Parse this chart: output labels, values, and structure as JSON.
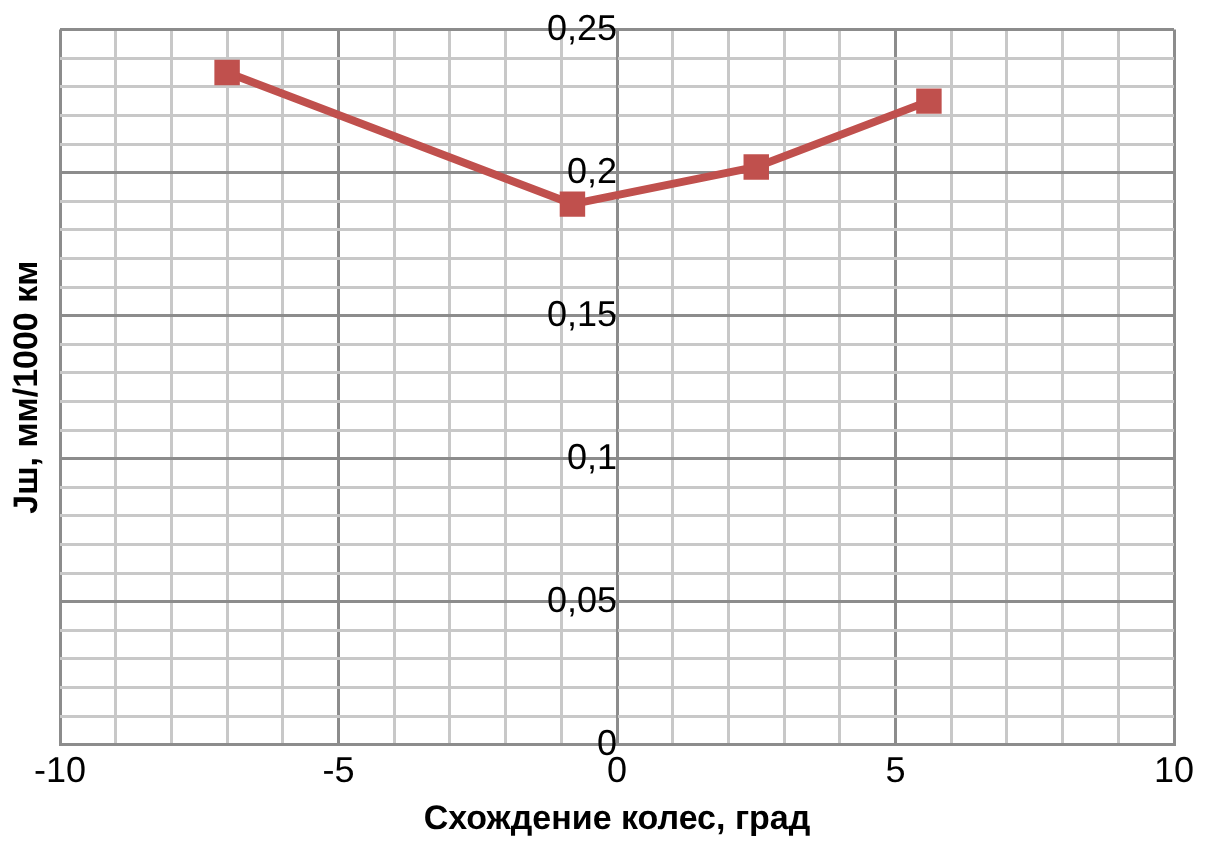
{
  "chart_data": {
    "type": "line",
    "xlabel": "Схождение колес, град",
    "ylabel": "Јш, мм/1000 км",
    "x": [
      -7,
      -0.8,
      2.5,
      5.6
    ],
    "series": [
      {
        "color": "#c0504d",
        "values": [
          0.235,
          0.189,
          0.202,
          0.225
        ]
      }
    ],
    "xlim": [
      -10,
      10
    ],
    "ylim": [
      0,
      0.25
    ],
    "xticks": [
      -10,
      {
        "value": -9,
        "label": null
      },
      {
        "value": -8,
        "label": null
      },
      {
        "value": -7,
        "label": null
      },
      {
        "value": -6,
        "label": null
      },
      -5,
      {
        "value": -4,
        "label": null
      },
      {
        "value": -3,
        "label": null
      },
      {
        "value": -2,
        "label": null
      },
      {
        "value": -1,
        "label": null
      },
      0,
      {
        "value": 1,
        "label": null
      },
      {
        "value": 2,
        "label": null
      },
      {
        "value": 3,
        "label": null
      },
      {
        "value": 4,
        "label": null
      },
      5,
      {
        "value": 6,
        "label": null
      },
      {
        "value": 7,
        "label": null
      },
      {
        "value": 8,
        "label": null
      },
      {
        "value": 9,
        "label": null
      },
      10
    ],
    "yticks": [
      {
        "value": 0,
        "label": "0"
      },
      {
        "value": 0.01,
        "label": null
      },
      {
        "value": 0.02,
        "label": null
      },
      {
        "value": 0.03,
        "label": null
      },
      {
        "value": 0.04,
        "label": null
      },
      {
        "value": 0.05,
        "label": "0,05"
      },
      {
        "value": 0.06,
        "label": null
      },
      {
        "value": 0.07,
        "label": null
      },
      {
        "value": 0.08,
        "label": null
      },
      {
        "value": 0.09,
        "label": null
      },
      {
        "value": 0.1,
        "label": "0,1"
      },
      {
        "value": 0.11,
        "label": null
      },
      {
        "value": 0.12,
        "label": null
      },
      {
        "value": 0.13,
        "label": null
      },
      {
        "value": 0.14,
        "label": null
      },
      {
        "value": 0.15,
        "label": "0,15"
      },
      {
        "value": 0.16,
        "label": null
      },
      {
        "value": 0.17,
        "label": null
      },
      {
        "value": 0.18,
        "label": null
      },
      {
        "value": 0.19,
        "label": null
      },
      {
        "value": 0.2,
        "label": "0,2"
      },
      {
        "value": 0.21,
        "label": null
      },
      {
        "value": 0.22,
        "label": null
      },
      {
        "value": 0.23,
        "label": null
      },
      {
        "value": 0.24,
        "label": null
      },
      {
        "value": 0.25,
        "label": "0,25"
      }
    ],
    "grid": true,
    "legend": false,
    "marker": "square",
    "line_style": "solid"
  }
}
